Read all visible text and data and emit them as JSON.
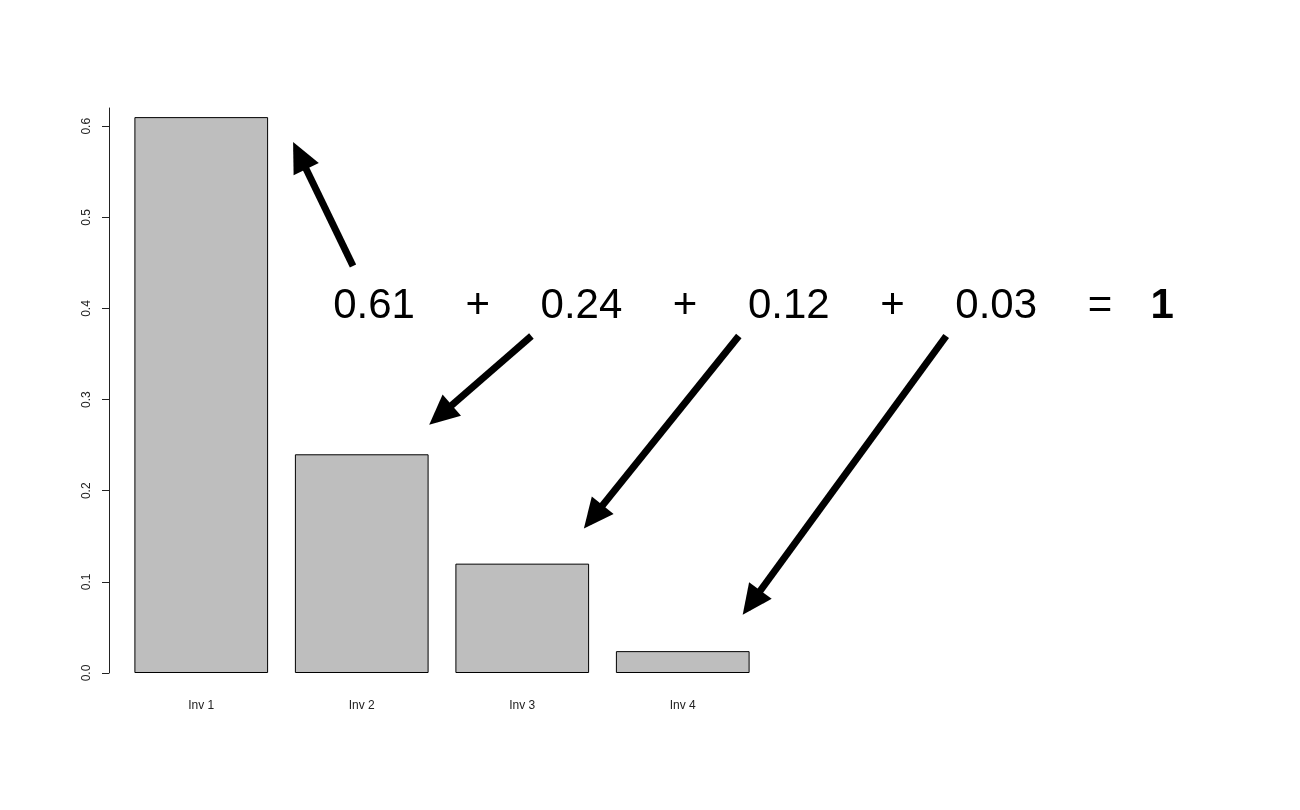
{
  "chart_data": {
    "type": "bar",
    "categories": [
      "Inv 1",
      "Inv 2",
      "Inv 3",
      "Inv 4"
    ],
    "values": [
      0.61,
      0.24,
      0.12,
      0.024
    ],
    "color": "#bebebe",
    "ylim": [
      0,
      0.62
    ],
    "yticks": [
      {
        "value": 0,
        "label": "0.0"
      },
      0.1,
      0.2,
      0.3,
      0.4,
      0.5,
      0.6
    ],
    "grid": false,
    "annotations": [
      "0.61",
      "+",
      "0.24",
      "+",
      "0.12",
      "+",
      "0.03",
      "=",
      "1"
    ]
  }
}
